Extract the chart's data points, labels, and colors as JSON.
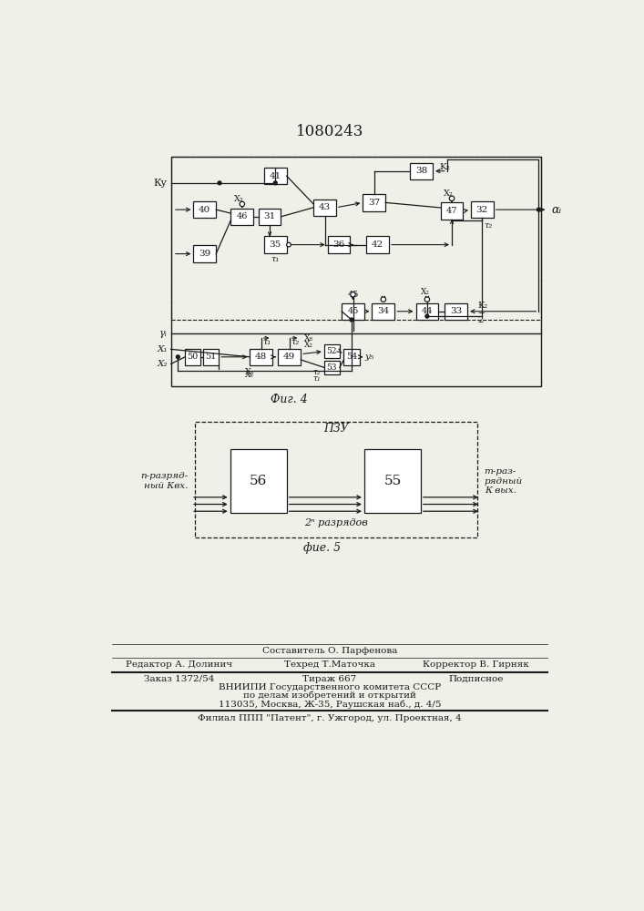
{
  "title": "1080243",
  "bg_color": "#f0efe8",
  "box_color": "#ffffff",
  "line_color": "#1a1a1a",
  "fig4_caption": "Фиг. 4",
  "fig5_caption": "фие. 5",
  "footer": {
    "line1": "Составитель О. Парфенова",
    "line2_left": "Редактор А. Долинич",
    "line2_mid": "Техред Т.Маточка",
    "line2_right": "Корректор В. Гирняк",
    "line3_left": "Заказ 1372/54",
    "line3_mid": "Тираж 667",
    "line3_right": "Подписное",
    "line4": "ВНИИПИ Государственного комитета СССР",
    "line5": "по делам изобретений и открытий",
    "line6": "113035, Москва, Ж-35, Раушская наб., д. 4/5",
    "line7": "Филиал ППП \"Патент\", г. Ужгород, ул. Проектная, 4"
  }
}
